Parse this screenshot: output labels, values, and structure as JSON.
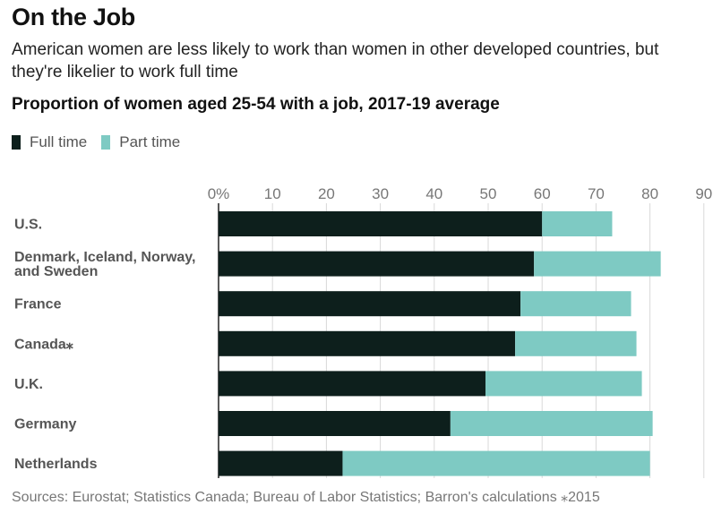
{
  "header": {
    "title": "On the Job",
    "subtitle": "American women are less likely to work than women in other developed countries, but they're likelier to work full time"
  },
  "footer": {
    "source": "Sources: Eurostat; Statistics Canada; Bureau of Labor Statistics; Barron's calculations ⁎2015"
  },
  "chart_data": {
    "type": "bar",
    "orientation": "horizontal",
    "stacked": true,
    "title": "Proportion of women aged 25-54 with a job, 2017-19 average",
    "categories": [
      [
        "U.S."
      ],
      [
        "Denmark, Iceland, Norway,",
        "and Sweden"
      ],
      [
        "France"
      ],
      [
        "Canada⁎"
      ],
      [
        "U.K."
      ],
      [
        "Germany"
      ],
      [
        "Netherlands"
      ]
    ],
    "series": [
      {
        "name": "Full time",
        "color": "#0d1f1c",
        "values": [
          60,
          58.5,
          56,
          55,
          49.5,
          43,
          23
        ]
      },
      {
        "name": "Part time",
        "color": "#7ecac3",
        "values": [
          13,
          23.5,
          20.5,
          22.5,
          29,
          37.5,
          57
        ]
      }
    ],
    "xlim": [
      0,
      90
    ],
    "xticks": [
      0,
      10,
      20,
      30,
      40,
      50,
      60,
      70,
      80,
      90
    ],
    "xtick_labels": [
      "0%",
      "10",
      "20",
      "30",
      "40",
      "50",
      "60",
      "70",
      "80",
      "90"
    ],
    "grid": true,
    "legend_position": "top-left"
  }
}
